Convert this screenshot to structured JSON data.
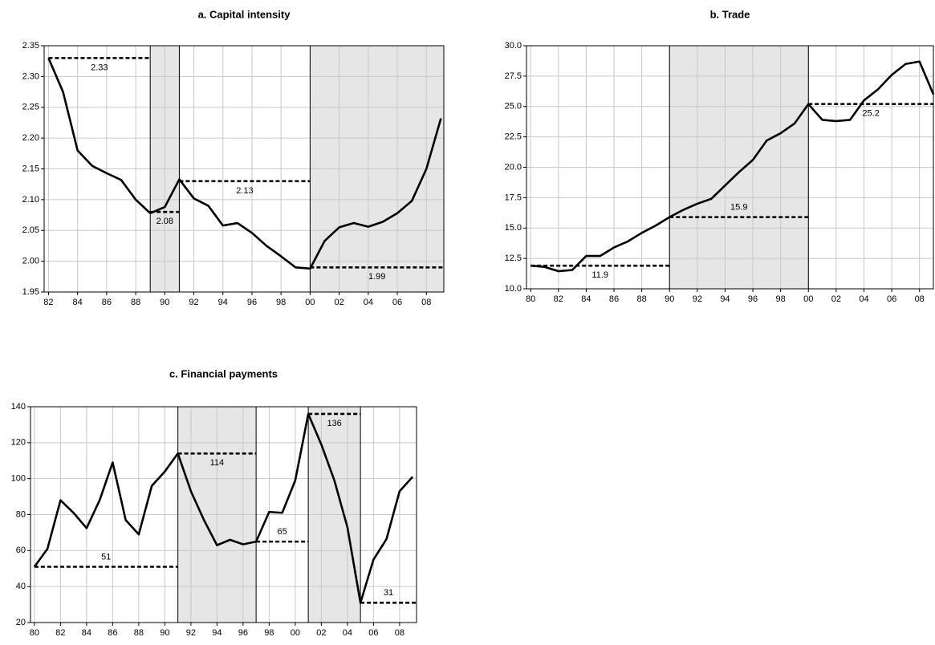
{
  "chart_data": [
    {
      "type": "line",
      "title": "a. Capital intensity",
      "color": "#000000",
      "grid": true,
      "x": [
        1982,
        1983,
        1984,
        1985,
        1986,
        1987,
        1988,
        1989,
        1990,
        1991,
        1992,
        1993,
        1994,
        1995,
        1996,
        1997,
        1998,
        1999,
        2000,
        2001,
        2002,
        2003,
        2004,
        2005,
        2006,
        2007,
        2008,
        2009
      ],
      "values": [
        2.33,
        2.275,
        2.18,
        2.155,
        2.143,
        2.132,
        2.1,
        2.078,
        2.088,
        2.133,
        2.102,
        2.09,
        2.058,
        2.062,
        2.046,
        2.025,
        2.008,
        1.99,
        1.988,
        2.033,
        2.055,
        2.062,
        2.056,
        2.064,
        2.078,
        2.098,
        2.15,
        2.232
      ],
      "xlim": [
        1981.7,
        2009.2
      ],
      "xticks": [
        {
          "value": 1982,
          "label": "82"
        },
        {
          "value": 1984,
          "label": "84"
        },
        {
          "value": 1986,
          "label": "86"
        },
        {
          "value": 1988,
          "label": "88"
        },
        {
          "value": 1990,
          "label": "90"
        },
        {
          "value": 1992,
          "label": "92"
        },
        {
          "value": 1994,
          "label": "94"
        },
        {
          "value": 1996,
          "label": "96"
        },
        {
          "value": 1998,
          "label": "98"
        },
        {
          "value": 2000,
          "label": "00"
        },
        {
          "value": 2002,
          "label": "02"
        },
        {
          "value": 2004,
          "label": "04"
        },
        {
          "value": 2006,
          "label": "06"
        },
        {
          "value": 2008,
          "label": "08"
        }
      ],
      "ylim": [
        1.95,
        2.35
      ],
      "yticks": [
        1.95,
        {
          "value": 2,
          "label": "2.00"
        },
        2.05,
        {
          "value": 2.1,
          "label": "2.10"
        },
        2.15,
        {
          "value": 2.2,
          "label": "2.20"
        },
        2.25,
        {
          "value": 2.3,
          "label": "2.30"
        },
        2.35
      ],
      "shaded": [
        [
          1989,
          1991
        ],
        [
          2000,
          2009.2
        ]
      ],
      "segments": [
        {
          "start": 1982,
          "end": 1989,
          "value": 2.33
        },
        {
          "start": 1989,
          "end": 1991,
          "value": 2.08
        },
        {
          "start": 1991,
          "end": 2000,
          "value": 2.13
        },
        {
          "start": 2000,
          "end": 2009.2,
          "value": 1.99
        }
      ]
    },
    {
      "type": "line",
      "title": "b. Trade",
      "color": "#000000",
      "grid": true,
      "x": [
        1980,
        1981,
        1982,
        1983,
        1984,
        1985,
        1986,
        1987,
        1988,
        1989,
        1990,
        1991,
        1992,
        1993,
        1994,
        1995,
        1996,
        1997,
        1998,
        1999,
        2000,
        2001,
        2002,
        2003,
        2004,
        2005,
        2006,
        2007,
        2008,
        2009
      ],
      "values": [
        11.9,
        11.8,
        11.45,
        11.55,
        12.7,
        12.7,
        13.4,
        13.9,
        14.6,
        15.2,
        15.9,
        16.5,
        17.0,
        17.4,
        18.5,
        19.6,
        20.6,
        22.2,
        22.8,
        23.6,
        25.2,
        23.9,
        23.8,
        23.9,
        25.5,
        26.4,
        27.6,
        28.5,
        28.7,
        26.0
      ],
      "xlim": [
        1979.7,
        2009
      ],
      "xticks": [
        {
          "value": 1980,
          "label": "80"
        },
        {
          "value": 1982,
          "label": "82"
        },
        {
          "value": 1984,
          "label": "84"
        },
        {
          "value": 1986,
          "label": "86"
        },
        {
          "value": 1988,
          "label": "88"
        },
        {
          "value": 1990,
          "label": "90"
        },
        {
          "value": 1992,
          "label": "92"
        },
        {
          "value": 1994,
          "label": "94"
        },
        {
          "value": 1996,
          "label": "96"
        },
        {
          "value": 1998,
          "label": "98"
        },
        {
          "value": 2000,
          "label": "00"
        },
        {
          "value": 2002,
          "label": "02"
        },
        {
          "value": 2004,
          "label": "04"
        },
        {
          "value": 2006,
          "label": "06"
        },
        {
          "value": 2008,
          "label": "08"
        }
      ],
      "ylim": [
        10,
        30
      ],
      "yticks": [
        {
          "value": 10,
          "label": "10.0"
        },
        12.5,
        {
          "value": 15,
          "label": "15.0"
        },
        17.5,
        {
          "value": 20,
          "label": "20.0"
        },
        22.5,
        {
          "value": 25,
          "label": "25.0"
        },
        27.5,
        {
          "value": 30,
          "label": "30.0"
        }
      ],
      "shaded": [
        [
          1990,
          2000
        ]
      ],
      "segments": [
        {
          "start": 1980,
          "end": 1990,
          "value": 11.9
        },
        {
          "start": 1990,
          "end": 2000,
          "value": 15.9
        },
        {
          "start": 2000,
          "end": 2009,
          "value": 25.2
        }
      ]
    },
    {
      "type": "line",
      "title": "c. Financial payments",
      "color": "#000000",
      "grid": true,
      "x": [
        1980,
        1981,
        1982,
        1983,
        1984,
        1985,
        1986,
        1987,
        1988,
        1989,
        1990,
        1991,
        1992,
        1993,
        1994,
        1995,
        1996,
        1997,
        1998,
        1999,
        2000,
        2001,
        2002,
        2003,
        2004,
        2005,
        2006,
        2007,
        2008,
        2009
      ],
      "values": [
        51,
        61,
        88,
        81,
        72.5,
        88,
        109,
        77,
        69,
        96,
        104,
        114,
        93,
        77,
        63,
        66,
        63.5,
        65,
        81.5,
        81,
        99,
        136,
        119,
        99,
        73,
        31,
        55,
        66.5,
        93,
        101
      ],
      "xlim": [
        1979.7,
        2009.3
      ],
      "xticks": [
        {
          "value": 1980,
          "label": "80"
        },
        {
          "value": 1982,
          "label": "82"
        },
        {
          "value": 1984,
          "label": "84"
        },
        {
          "value": 1986,
          "label": "86"
        },
        {
          "value": 1988,
          "label": "88"
        },
        {
          "value": 1990,
          "label": "90"
        },
        {
          "value": 1992,
          "label": "92"
        },
        {
          "value": 1994,
          "label": "94"
        },
        {
          "value": 1996,
          "label": "96"
        },
        {
          "value": 1998,
          "label": "98"
        },
        {
          "value": 2000,
          "label": "00"
        },
        {
          "value": 2002,
          "label": "02"
        },
        {
          "value": 2004,
          "label": "04"
        },
        {
          "value": 2006,
          "label": "06"
        },
        {
          "value": 2008,
          "label": "08"
        }
      ],
      "ylim": [
        20,
        140
      ],
      "yticks": [
        20,
        40,
        60,
        80,
        100,
        120,
        140
      ],
      "shaded": [
        [
          1991,
          1997
        ],
        [
          2001,
          2005
        ]
      ],
      "segments": [
        {
          "start": 1980,
          "end": 1991,
          "value": 51
        },
        {
          "start": 1991,
          "end": 1997,
          "value": 114
        },
        {
          "start": 1997,
          "end": 2001,
          "value": 65
        },
        {
          "start": 2001,
          "end": 2005,
          "value": 136
        },
        {
          "start": 2005,
          "end": 2009.3,
          "value": 31
        }
      ]
    }
  ]
}
